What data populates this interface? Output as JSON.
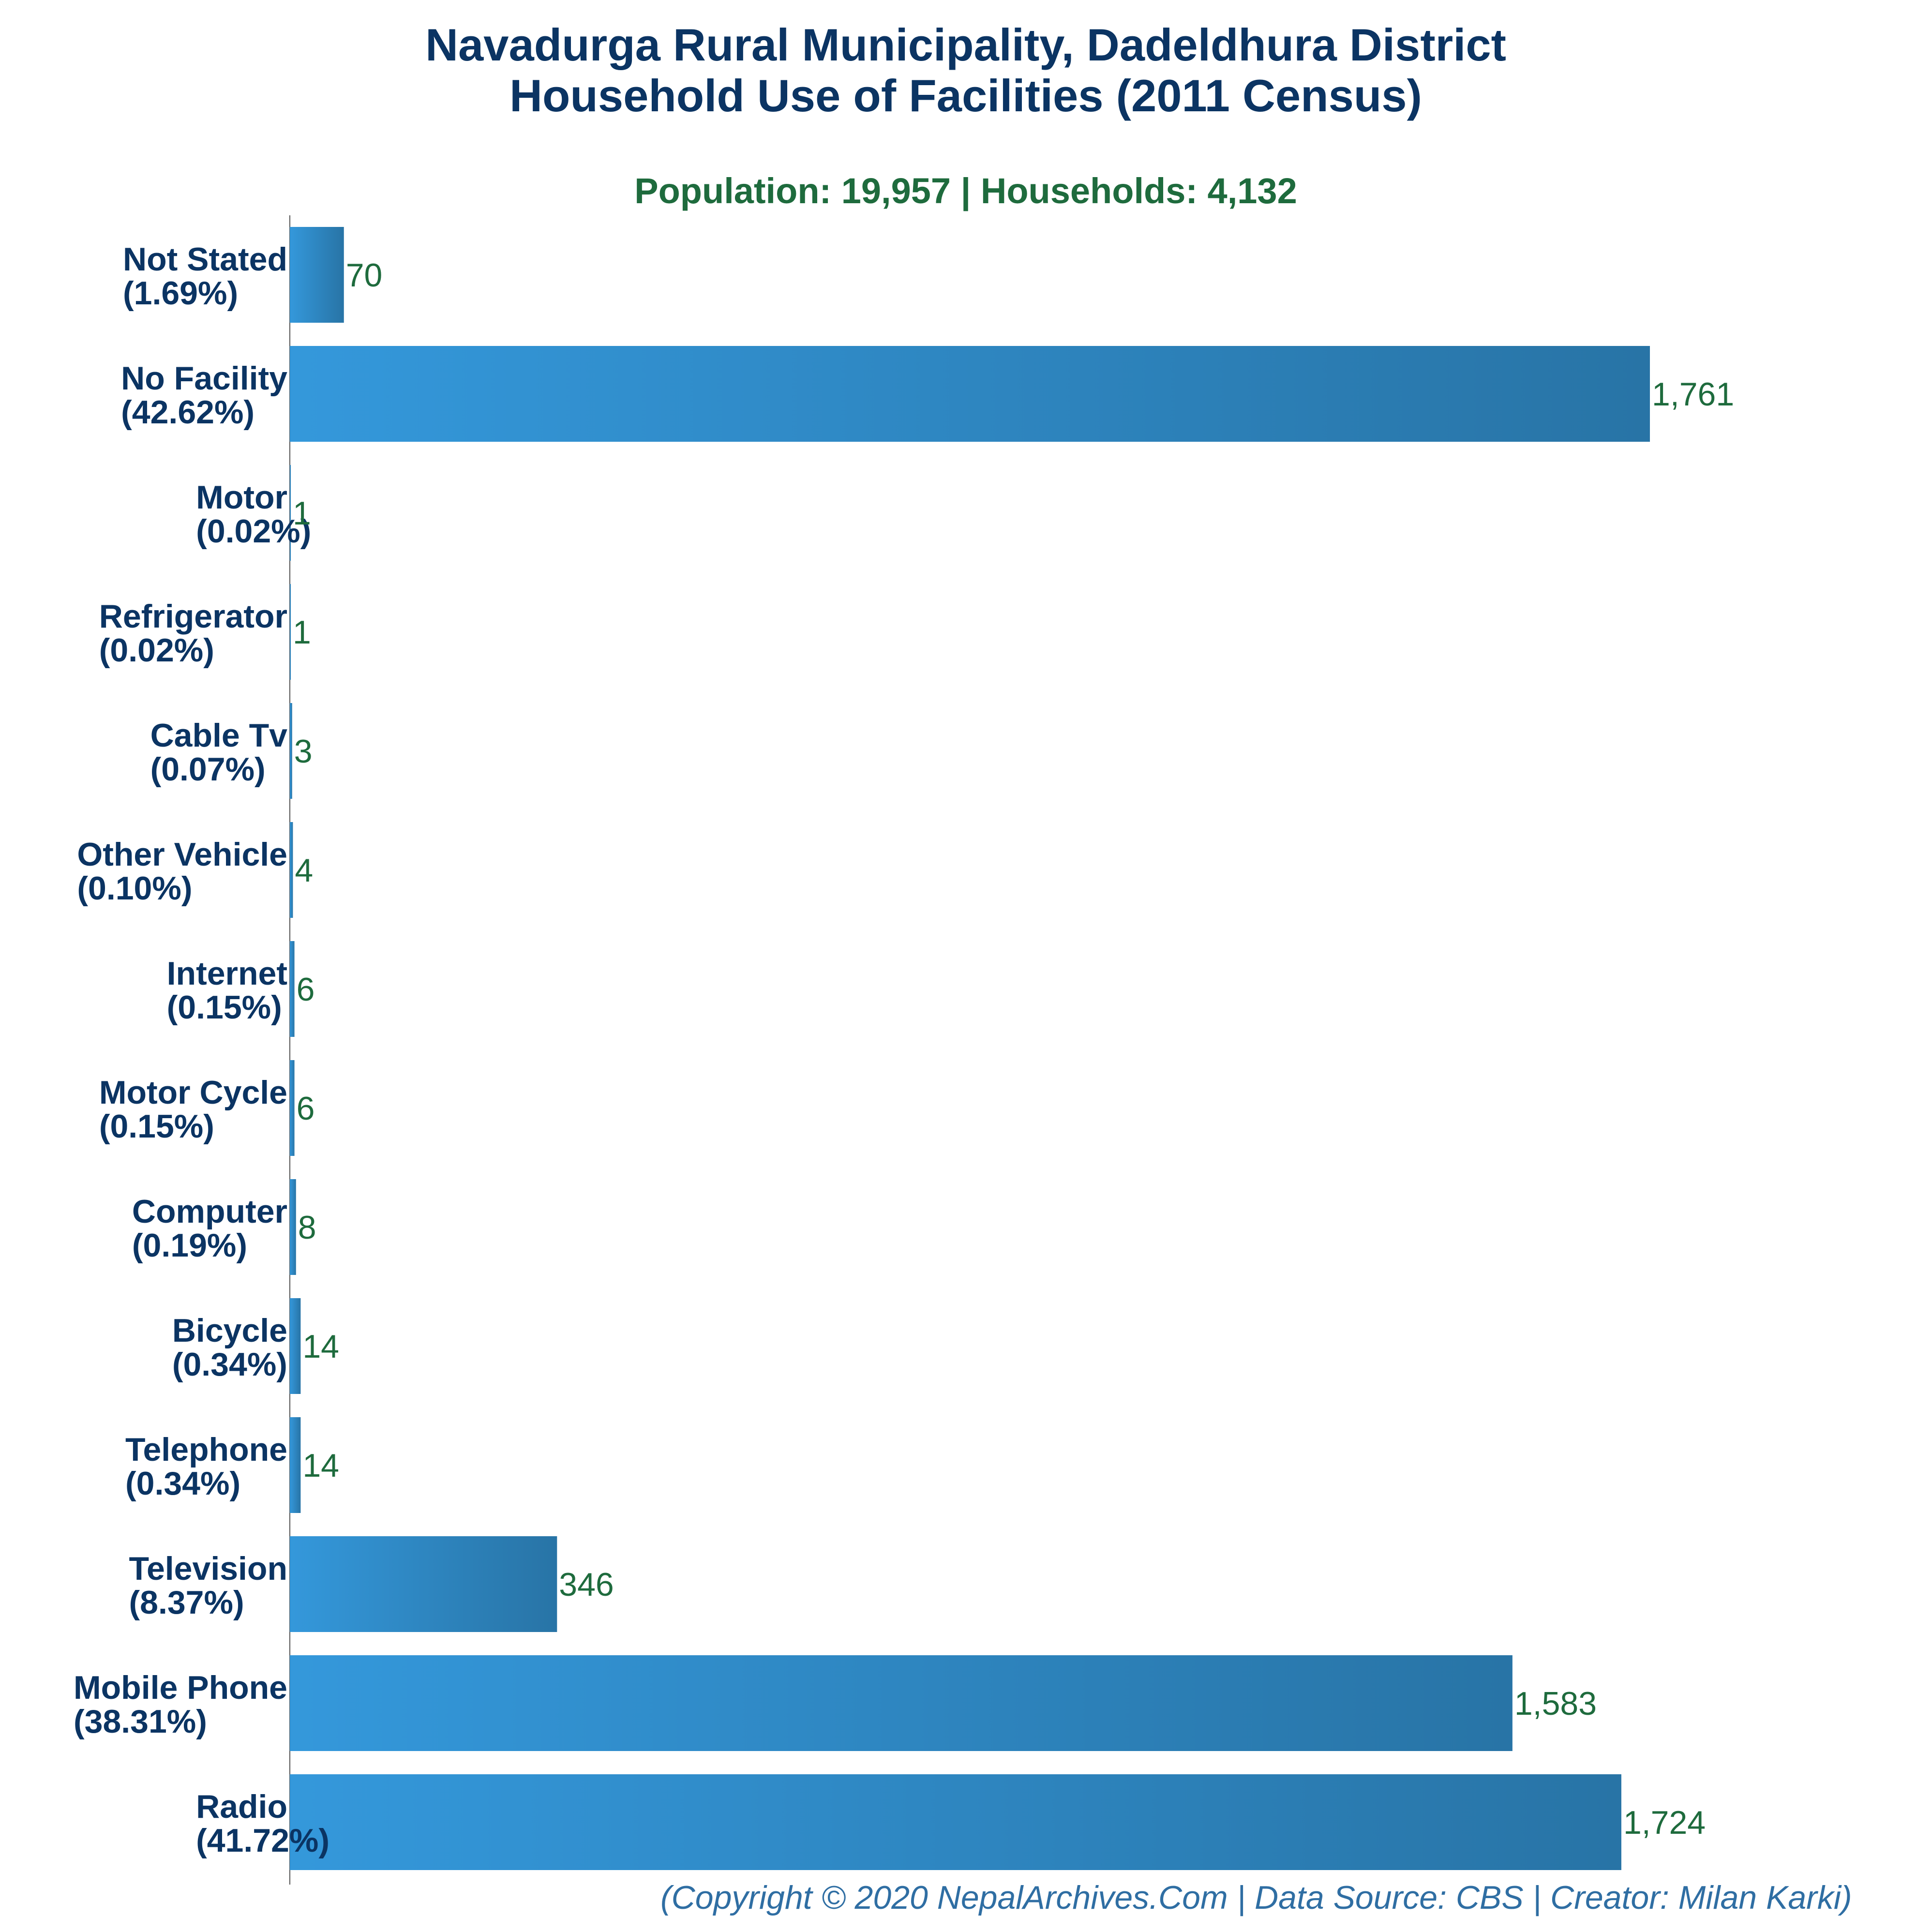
{
  "chart_data": {
    "type": "bar",
    "orientation": "horizontal",
    "title": [
      "Navadurga Rural Municipality, Dadeldhura District",
      "Household Use of Facilities (2011 Census)"
    ],
    "subtitle": "Population: 19,957 | Households: 4,132",
    "categories": [
      "Not Stated",
      "No Facility",
      "Motor",
      "Refrigerator",
      "Cable Tv",
      "Other Vehicle",
      "Internet",
      "Motor Cycle",
      "Computer",
      "Bicycle",
      "Telephone",
      "Television",
      "Mobile Phone",
      "Radio"
    ],
    "percent_labels": [
      "(1.69%)",
      "(42.62%)",
      "(0.02%)",
      "(0.02%)",
      "(0.07%)",
      "(0.10%)",
      "(0.15%)",
      "(0.15%)",
      "(0.19%)",
      "(0.34%)",
      "(0.34%)",
      "(8.37%)",
      "(38.31%)",
      "(41.72%)"
    ],
    "values": [
      70,
      1761,
      1,
      1,
      3,
      4,
      6,
      6,
      8,
      14,
      14,
      346,
      1583,
      1724
    ],
    "value_labels": [
      "70",
      "1,761",
      "1",
      "1",
      "3",
      "4",
      "6",
      "6",
      "8",
      "14",
      "14",
      "346",
      "1,583",
      "1,724"
    ],
    "xlim": [
      0,
      1761
    ],
    "grid": false,
    "footer": "(Copyright © 2020 NepalArchives.Com | Data Source: CBS | Creator: Milan Karki)",
    "colors": {
      "bar_start": "#3498db",
      "bar_end": "#2874a6",
      "title": "#0b3463",
      "subtitle": "#1e6b3d",
      "value_text": "#1e6b3d",
      "footer": "#2f6ea3",
      "axis": "#555555"
    }
  }
}
